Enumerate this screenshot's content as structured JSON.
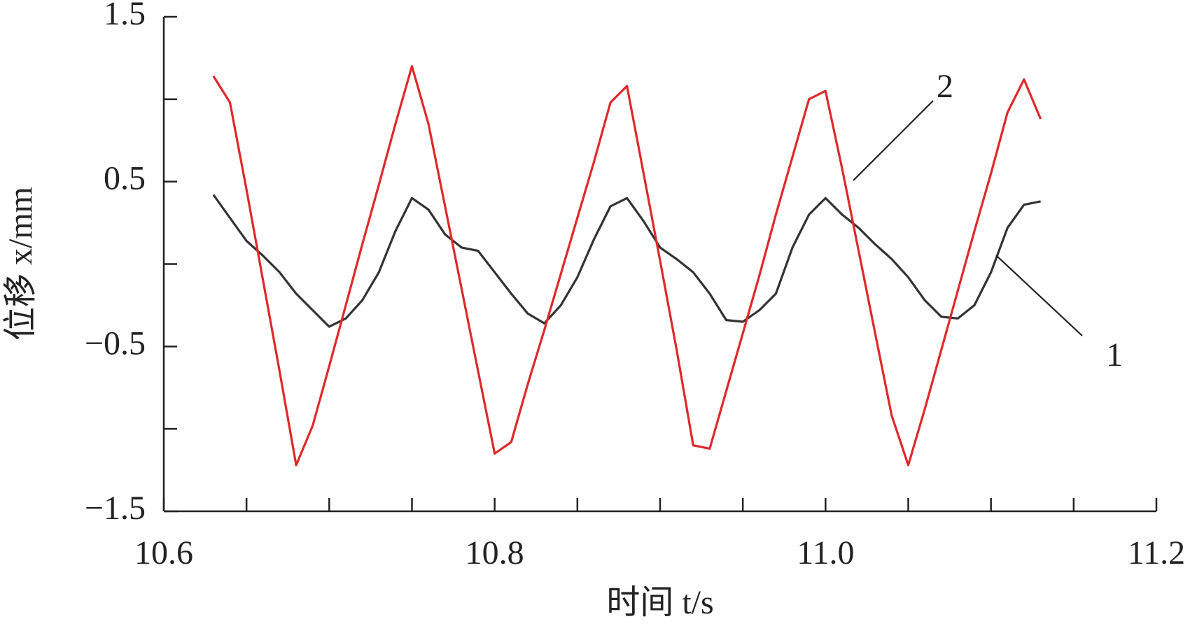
{
  "chart_data": {
    "type": "line",
    "xlabel": "时间 t/s",
    "ylabel": "位移 x/mm",
    "x": [
      10.63,
      10.64,
      10.65,
      10.66,
      10.67,
      10.68,
      10.69,
      10.7,
      10.71,
      10.72,
      10.73,
      10.74,
      10.75,
      10.76,
      10.77,
      10.78,
      10.79,
      10.8,
      10.81,
      10.82,
      10.83,
      10.84,
      10.85,
      10.86,
      10.87,
      10.88,
      10.89,
      10.9,
      10.91,
      10.92,
      10.93,
      10.94,
      10.95,
      10.96,
      10.97,
      10.98,
      10.99,
      11.0,
      11.01,
      11.02,
      11.03,
      11.04,
      11.05,
      11.06,
      11.07,
      11.08,
      11.09,
      11.1,
      11.11,
      11.12,
      11.13
    ],
    "series": [
      {
        "name": "1",
        "color": "#333333",
        "values": [
          0.42,
          0.28,
          0.14,
          0.05,
          -0.05,
          -0.18,
          -0.28,
          -0.38,
          -0.33,
          -0.22,
          -0.05,
          0.2,
          0.4,
          0.33,
          0.18,
          0.1,
          0.08,
          -0.05,
          -0.18,
          -0.3,
          -0.36,
          -0.25,
          -0.08,
          0.15,
          0.35,
          0.4,
          0.26,
          0.1,
          0.03,
          -0.05,
          -0.18,
          -0.34,
          -0.35,
          -0.28,
          -0.18,
          0.1,
          0.3,
          0.4,
          0.3,
          0.22,
          0.12,
          0.03,
          -0.08,
          -0.22,
          -0.32,
          -0.33,
          -0.25,
          -0.05,
          0.22,
          0.36,
          0.38
        ]
      },
      {
        "name": "2",
        "color": "#e0282a",
        "values": [
          1.14,
          0.98,
          0.45,
          -0.1,
          -0.65,
          -1.22,
          -0.98,
          -0.62,
          -0.25,
          0.12,
          0.48,
          0.85,
          1.2,
          0.85,
          0.35,
          -0.15,
          -0.65,
          -1.15,
          -1.08,
          -0.73,
          -0.4,
          -0.06,
          0.28,
          0.62,
          0.98,
          1.08,
          0.55,
          0.02,
          -0.52,
          -1.1,
          -1.12,
          -0.77,
          -0.42,
          -0.07,
          0.3,
          0.65,
          1.0,
          1.05,
          0.58,
          0.08,
          -0.42,
          -0.92,
          -1.22,
          -0.88,
          -0.52,
          -0.16,
          0.2,
          0.55,
          0.92,
          1.12,
          0.88
        ]
      }
    ],
    "xlim": [
      10.6,
      11.2
    ],
    "xticks": [
      10.6,
      10.8,
      {
        "value": 11,
        "label": "11.0"
      },
      11.2
    ],
    "xminorticks": [
      10.65,
      10.7,
      10.75,
      10.85,
      10.9,
      10.95,
      11.05,
      11.1,
      11.15
    ],
    "ylim": [
      -1.5,
      1.5
    ],
    "yticks": [
      {
        "value": -1.5,
        "label": "−1.5"
      },
      {
        "value": -0.5,
        "label": "−0.5"
      },
      0.5,
      1.5
    ],
    "yminorticks": [
      -1,
      0,
      1
    ]
  }
}
